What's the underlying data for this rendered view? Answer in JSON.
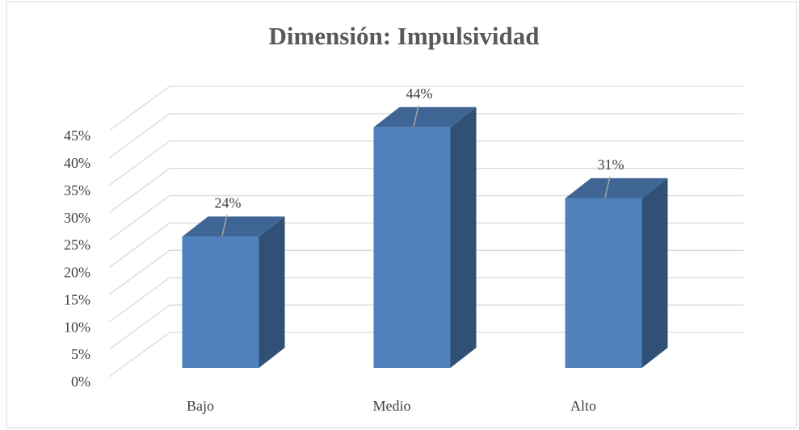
{
  "chart_data": {
    "type": "bar3d",
    "title": "Dimensión: Impulsividad",
    "categories": [
      "Bajo",
      "Medio",
      "Alto"
    ],
    "values": [
      24,
      44,
      31
    ],
    "value_labels": [
      "24%",
      "44%",
      "31%"
    ],
    "color": "#4f81bd",
    "ylim": [
      0,
      45
    ],
    "yticks": [
      {
        "value": 0,
        "label": "0%"
      },
      {
        "value": 5,
        "label": "5%"
      },
      {
        "value": 10,
        "label": "10%"
      },
      {
        "value": 15,
        "label": "15%"
      },
      {
        "value": 20,
        "label": "20%"
      },
      {
        "value": 25,
        "label": "25%"
      },
      {
        "value": 30,
        "label": "30%"
      },
      {
        "value": 35,
        "label": "35%"
      },
      {
        "value": 40,
        "label": "40%"
      },
      {
        "value": 45,
        "label": "45%"
      }
    ],
    "grid": true
  }
}
